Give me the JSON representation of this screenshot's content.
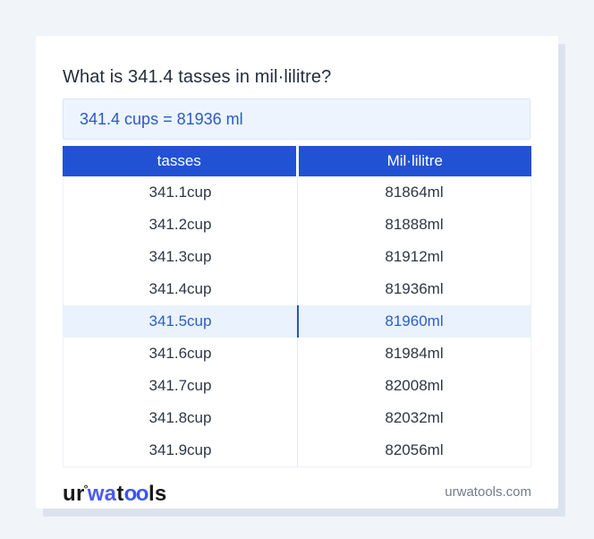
{
  "title": "What is 341.4 tasses in mil·lilitre?",
  "answer": {
    "text": "341.4 cups = 81936 ml"
  },
  "table": {
    "columns": [
      "tasses",
      "Mil·lilitre"
    ],
    "rows": [
      {
        "tasses": "341.1cup",
        "ml": "81864ml",
        "highlighted": false
      },
      {
        "tasses": "341.2cup",
        "ml": "81888ml",
        "highlighted": false
      },
      {
        "tasses": "341.3cup",
        "ml": "81912ml",
        "highlighted": false
      },
      {
        "tasses": "341.4cup",
        "ml": "81936ml",
        "highlighted": false
      },
      {
        "tasses": "341.5cup",
        "ml": "81960ml",
        "highlighted": true
      },
      {
        "tasses": "341.6cup",
        "ml": "81984ml",
        "highlighted": false
      },
      {
        "tasses": "341.7cup",
        "ml": "82008ml",
        "highlighted": false
      },
      {
        "tasses": "341.8cup",
        "ml": "82032ml",
        "highlighted": false
      },
      {
        "tasses": "341.9cup",
        "ml": "82056ml",
        "highlighted": false
      }
    ]
  },
  "footer": {
    "logo": {
      "ur": "ur",
      "mark": "°",
      "wa": "wa",
      "t": "t",
      "oo": "oo",
      "ls": "ls"
    },
    "domain": "urwatools.com"
  },
  "colors": {
    "header_blue": "#2152d3",
    "answer_bg": "#edf4fd",
    "answer_text": "#2a59c8",
    "highlight_bg": "#e9f2fd",
    "highlight_text": "#2d5dc8",
    "highlight_divider": "#1e5cb5",
    "logo_blue": "#4a5af0",
    "page_bg": "#f1f4f9"
  }
}
